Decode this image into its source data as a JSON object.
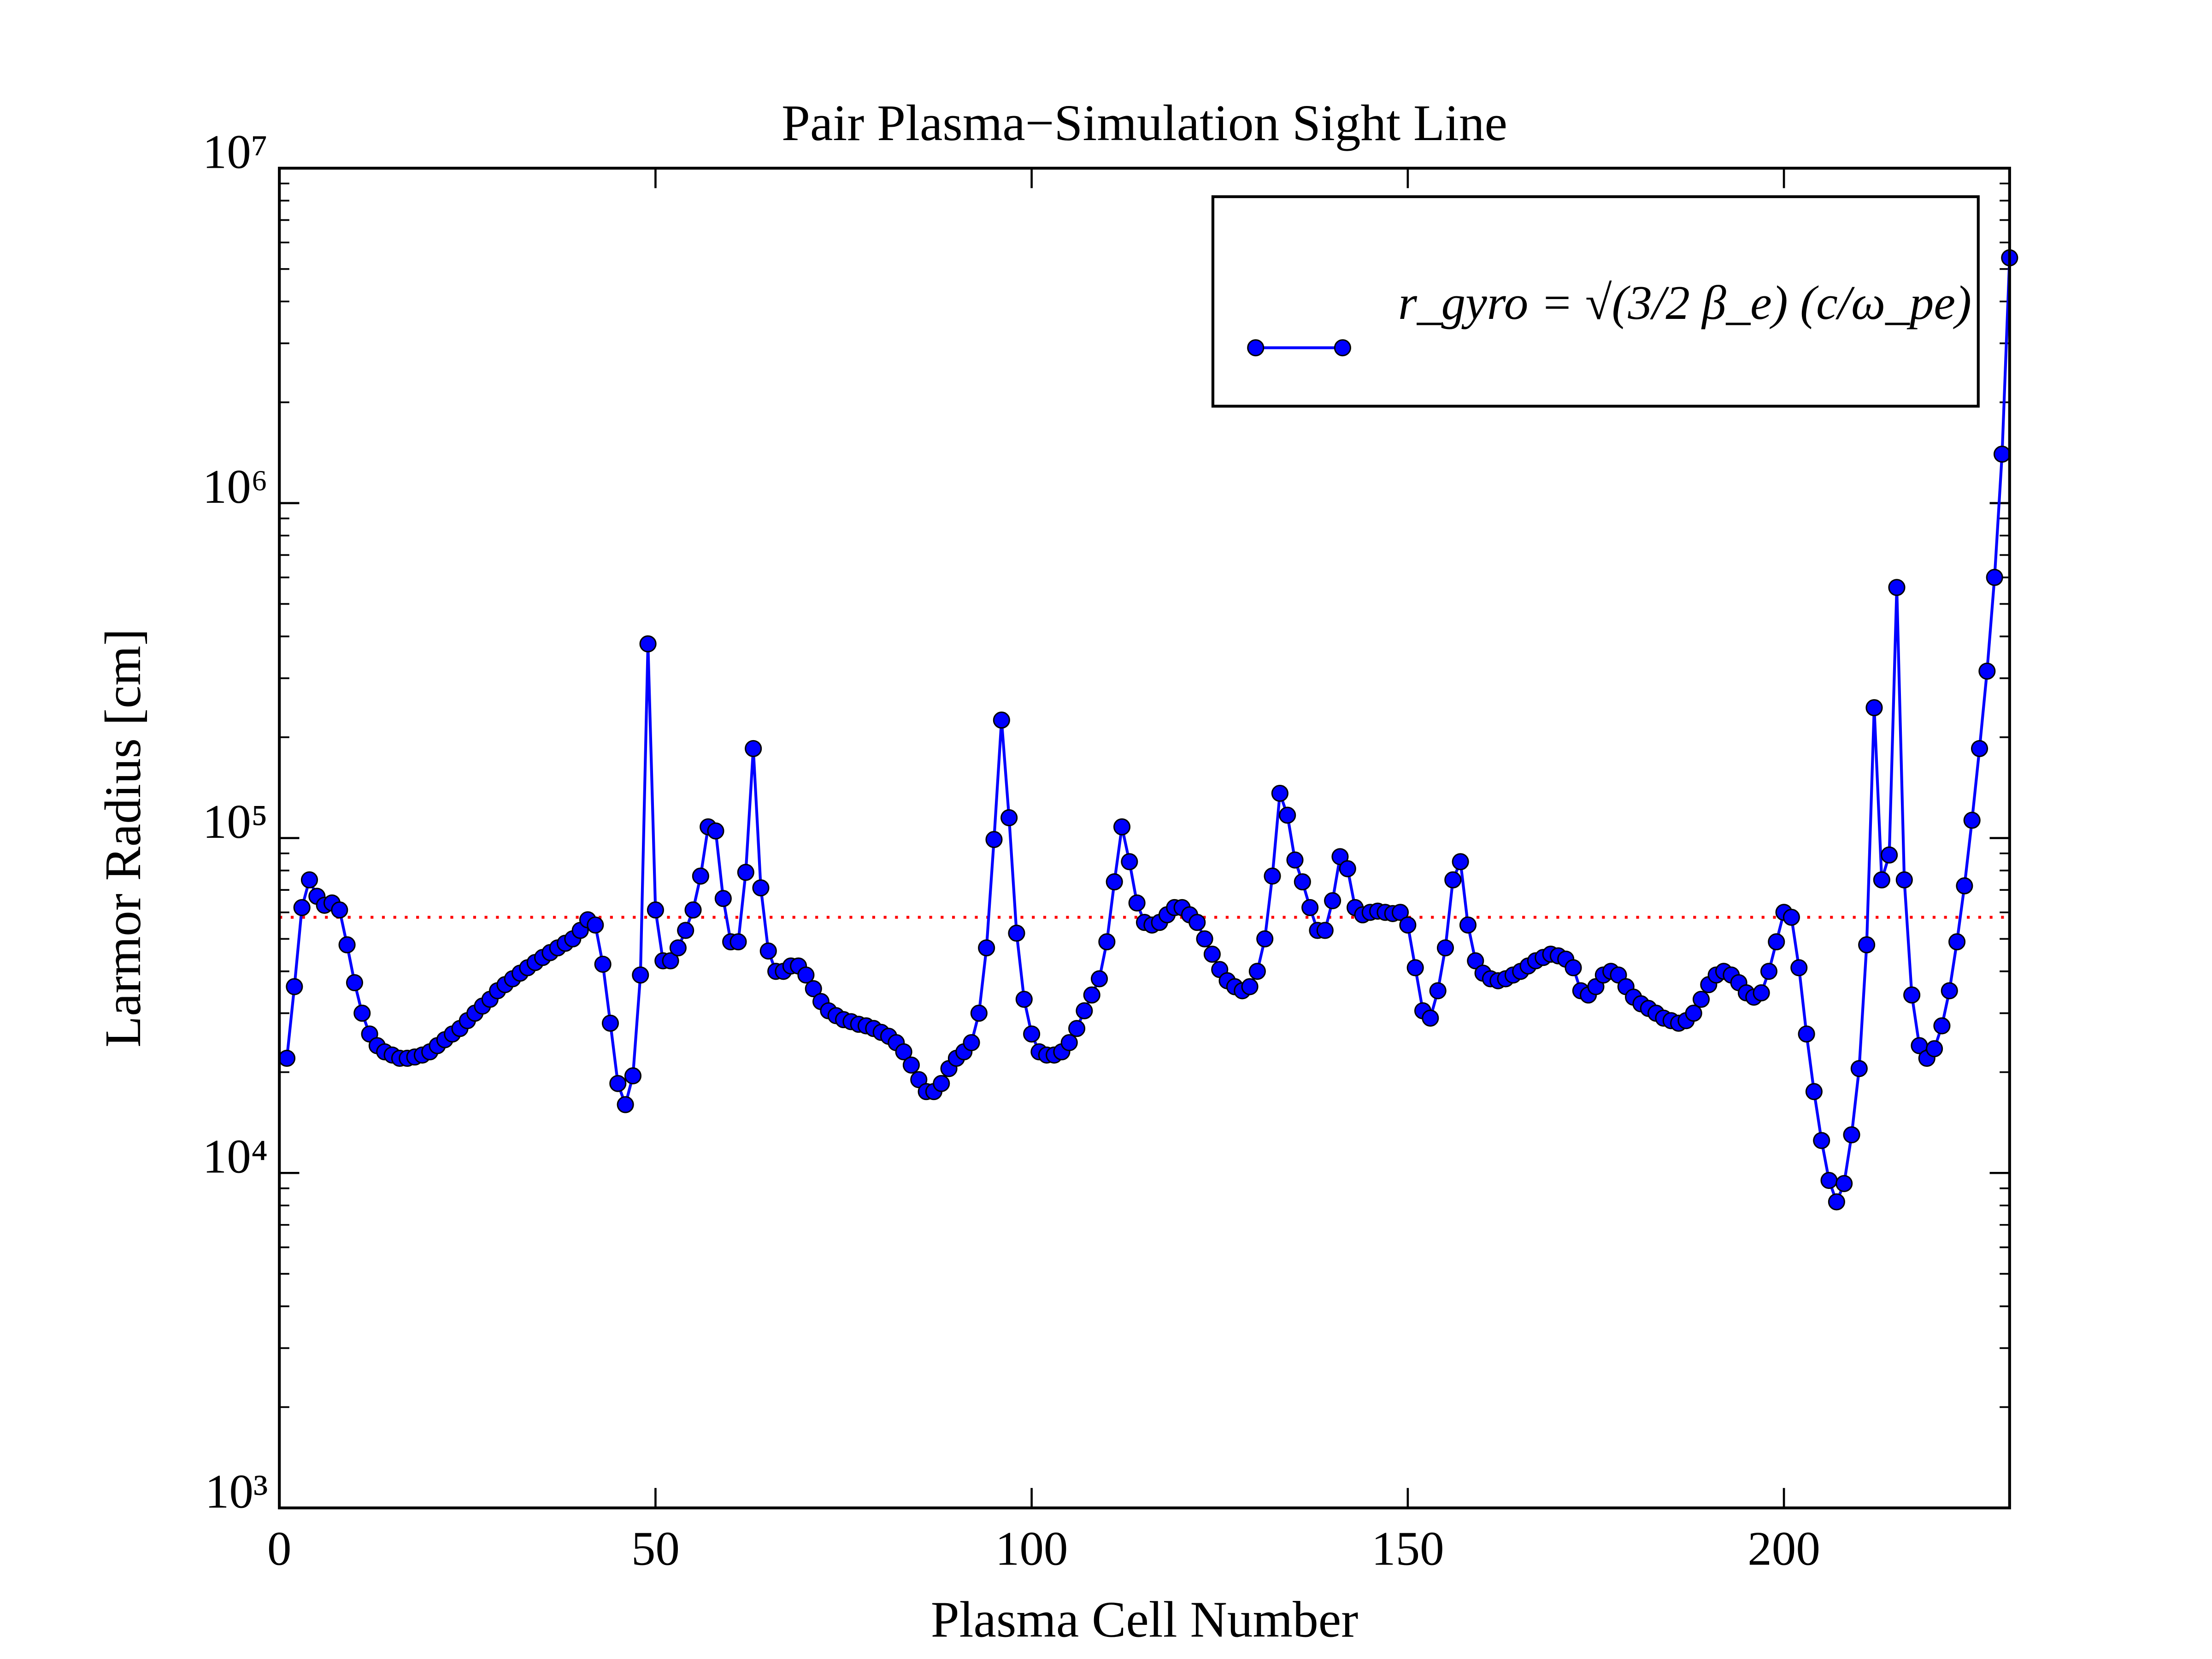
{
  "chart_data": {
    "type": "line",
    "title": "Pair Plasma−Simulation Sight Line",
    "xlabel": "Plasma Cell Number",
    "ylabel": "Larmor Radius [cm]",
    "xlim": [
      0,
      230
    ],
    "xticks": [
      0,
      50,
      100,
      150,
      200
    ],
    "ylim": [
      1000,
      10000000
    ],
    "yscale": "log",
    "yticks": [
      {
        "value": 1000,
        "label": "10³"
      },
      {
        "value": 10000,
        "label": "10⁴"
      },
      {
        "value": 100000,
        "label": "10⁵"
      },
      {
        "value": 1000000,
        "label": "10⁶"
      },
      {
        "value": 10000000,
        "label": "10⁷"
      }
    ],
    "yminorticks": [
      2000,
      3000,
      4000,
      5000,
      6000,
      7000,
      8000,
      9000,
      20000,
      30000,
      40000,
      50000,
      60000,
      70000,
      80000,
      90000,
      200000,
      300000,
      400000,
      500000,
      600000,
      700000,
      800000,
      900000,
      2000000,
      3000000,
      4000000,
      5000000,
      6000000,
      7000000,
      8000000,
      9000000
    ],
    "legend": "upper right",
    "hline": {
      "value": 58000,
      "color": "#ff0000"
    },
    "series": [
      {
        "name": "r_gyro = √(3/2 β_e) (c/ω_pe)",
        "color": "#0000ff",
        "x": [
          1,
          2,
          3,
          4,
          5,
          6,
          7,
          8,
          9,
          10,
          11,
          12,
          13,
          14,
          15,
          16,
          17,
          18,
          19,
          20,
          21,
          22,
          23,
          24,
          25,
          26,
          27,
          28,
          29,
          30,
          31,
          32,
          33,
          34,
          35,
          36,
          37,
          38,
          39,
          40,
          41,
          42,
          43,
          44,
          45,
          46,
          47,
          48,
          49,
          50,
          51,
          52,
          53,
          54,
          55,
          56,
          57,
          58,
          59,
          60,
          61,
          62,
          63,
          64,
          65,
          66,
          67,
          68,
          69,
          70,
          71,
          72,
          73,
          74,
          75,
          76,
          77,
          78,
          79,
          80,
          81,
          82,
          83,
          84,
          85,
          86,
          87,
          88,
          89,
          90,
          91,
          92,
          93,
          94,
          95,
          96,
          97,
          98,
          99,
          100,
          101,
          102,
          103,
          104,
          105,
          106,
          107,
          108,
          109,
          110,
          111,
          112,
          113,
          114,
          115,
          116,
          117,
          118,
          119,
          120,
          121,
          122,
          123,
          124,
          125,
          126,
          127,
          128,
          129,
          130,
          131,
          132,
          133,
          134,
          135,
          136,
          137,
          138,
          139,
          140,
          141,
          142,
          143,
          144,
          145,
          146,
          147,
          148,
          149,
          150,
          151,
          152,
          153,
          154,
          155,
          156,
          157,
          158,
          159,
          160,
          161,
          162,
          163,
          164,
          165,
          166,
          167,
          168,
          169,
          170,
          171,
          172,
          173,
          174,
          175,
          176,
          177,
          178,
          179,
          180,
          181,
          182,
          183,
          184,
          185,
          186,
          187,
          188,
          189,
          190,
          191,
          192,
          193,
          194,
          195,
          196,
          197,
          198,
          199,
          200,
          201,
          202,
          203,
          204,
          205,
          206,
          207,
          208,
          209,
          210,
          211,
          212,
          213,
          214,
          215,
          216,
          217,
          218,
          219,
          220,
          221,
          222,
          223,
          224,
          225,
          226,
          227,
          228,
          229,
          230
        ],
        "values": [
          22000,
          36000,
          62000,
          75000,
          67000,
          63000,
          64000,
          61000,
          48000,
          37000,
          30000,
          26000,
          24000,
          23000,
          22500,
          22000,
          22000,
          22200,
          22500,
          23000,
          24000,
          25000,
          26000,
          27000,
          28500,
          30000,
          31500,
          33000,
          35000,
          36500,
          38000,
          39500,
          41000,
          42500,
          44000,
          45500,
          47000,
          48500,
          50000,
          53000,
          57000,
          55000,
          42000,
          28000,
          18500,
          16000,
          19500,
          39000,
          380000,
          61000,
          43000,
          43000,
          47000,
          53000,
          61000,
          77000,
          108000,
          105000,
          66000,
          49000,
          49000,
          79000,
          185000,
          71000,
          46000,
          40000,
          40000,
          41500,
          41500,
          39000,
          35500,
          32500,
          30500,
          29500,
          28700,
          28300,
          27800,
          27500,
          27000,
          26300,
          25600,
          24500,
          23000,
          21000,
          19000,
          17500,
          17500,
          18500,
          20500,
          22000,
          23000,
          24500,
          30000,
          47000,
          99000,
          225000,
          115000,
          52000,
          33000,
          26000,
          23000,
          22500,
          22500,
          23000,
          24500,
          27000,
          30500,
          34000,
          38000,
          49000,
          74000,
          108000,
          85000,
          64000,
          56000,
          55000,
          56000,
          59000,
          62000,
          62000,
          59000,
          56000,
          50000,
          45000,
          40500,
          37500,
          36000,
          35000,
          36000,
          40000,
          50000,
          77000,
          136000,
          117000,
          86000,
          74000,
          62000,
          53000,
          53000,
          65000,
          88000,
          81000,
          62000,
          59000,
          60000,
          60500,
          60000,
          59500,
          60000,
          55000,
          41000,
          30500,
          29000,
          35000,
          47000,
          75000,
          85000,
          55000,
          43000,
          39500,
          38000,
          37500,
          38000,
          39000,
          40000,
          41500,
          43000,
          44000,
          45000,
          44500,
          43500,
          41000,
          35000,
          34000,
          36000,
          39000,
          40000,
          39000,
          36000,
          33500,
          32000,
          31000,
          30000,
          29000,
          28500,
          28000,
          28500,
          30000,
          33000,
          36500,
          39000,
          40000,
          39000,
          37000,
          34500,
          33500,
          34500,
          40000,
          49000,
          60000,
          58000,
          41000,
          26000,
          17500,
          12500,
          9500,
          8200,
          9300,
          13000,
          20500,
          48000,
          245000,
          75000,
          89000,
          560000,
          75000,
          34000,
          24000,
          22000,
          23500,
          27500,
          35000,
          49000,
          72000,
          113000,
          185000,
          315000,
          600000,
          1400000,
          5400000
        ]
      }
    ]
  }
}
